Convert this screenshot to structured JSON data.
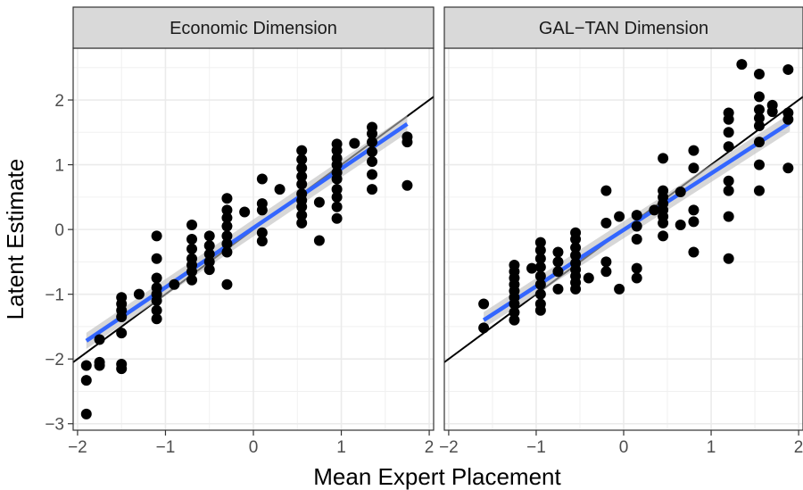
{
  "chart_data": [
    {
      "type": "scatter",
      "title": "Economic Dimension",
      "xlabel": "Mean Expert Placement",
      "ylabel": "Latent Estimate",
      "xlim": [
        -2.05,
        2.05
      ],
      "ylim": [
        -3.1,
        2.8
      ],
      "x_ticks": [
        -2,
        -1,
        0,
        1,
        2
      ],
      "y_ticks": [
        -3,
        -2,
        -1,
        0,
        1,
        2
      ],
      "grid": true,
      "identity_line": {
        "slope": 1,
        "intercept": 0
      },
      "fit_line": {
        "x": [
          -1.9,
          1.75
        ],
        "y": [
          -1.72,
          1.63
        ]
      },
      "points": [
        [
          -1.9,
          -2.85
        ],
        [
          -1.9,
          -2.33
        ],
        [
          -1.9,
          -2.1
        ],
        [
          -1.75,
          -2.1
        ],
        [
          -1.75,
          -2.05
        ],
        [
          -1.75,
          -1.7
        ],
        [
          -1.5,
          -2.15
        ],
        [
          -1.5,
          -2.08
        ],
        [
          -1.5,
          -1.6
        ],
        [
          -1.5,
          -1.35
        ],
        [
          -1.5,
          -1.25
        ],
        [
          -1.5,
          -1.15
        ],
        [
          -1.5,
          -1.05
        ],
        [
          -1.3,
          -1.0
        ],
        [
          -1.1,
          -0.1
        ],
        [
          -1.1,
          -0.45
        ],
        [
          -1.1,
          -0.75
        ],
        [
          -1.1,
          -0.9
        ],
        [
          -1.1,
          -1.0
        ],
        [
          -1.1,
          -1.1
        ],
        [
          -1.1,
          -1.25
        ],
        [
          -1.1,
          -1.38
        ],
        [
          -0.9,
          -0.85
        ],
        [
          -0.7,
          0.07
        ],
        [
          -0.7,
          -0.15
        ],
        [
          -0.7,
          -0.3
        ],
        [
          -0.7,
          -0.45
        ],
        [
          -0.7,
          -0.55
        ],
        [
          -0.7,
          -0.65
        ],
        [
          -0.7,
          -0.78
        ],
        [
          -0.5,
          -0.1
        ],
        [
          -0.5,
          -0.25
        ],
        [
          -0.5,
          -0.38
        ],
        [
          -0.5,
          -0.5
        ],
        [
          -0.5,
          -0.62
        ],
        [
          -0.3,
          0.48
        ],
        [
          -0.3,
          0.3
        ],
        [
          -0.3,
          0.18
        ],
        [
          -0.3,
          0.05
        ],
        [
          -0.3,
          -0.1
        ],
        [
          -0.3,
          -0.22
        ],
        [
          -0.3,
          -0.35
        ],
        [
          -0.3,
          -0.85
        ],
        [
          -0.1,
          0.27
        ],
        [
          0.1,
          0.78
        ],
        [
          0.1,
          0.4
        ],
        [
          0.1,
          0.3
        ],
        [
          0.1,
          -0.05
        ],
        [
          0.1,
          -0.18
        ],
        [
          0.3,
          0.62
        ],
        [
          0.55,
          1.22
        ],
        [
          0.55,
          1.08
        ],
        [
          0.55,
          0.95
        ],
        [
          0.55,
          0.82
        ],
        [
          0.55,
          0.7
        ],
        [
          0.55,
          0.55
        ],
        [
          0.55,
          0.45
        ],
        [
          0.55,
          0.35
        ],
        [
          0.55,
          0.22
        ],
        [
          0.55,
          0.1
        ],
        [
          0.75,
          0.42
        ],
        [
          0.75,
          -0.17
        ],
        [
          0.95,
          1.32
        ],
        [
          0.95,
          1.22
        ],
        [
          0.95,
          1.1
        ],
        [
          0.95,
          1.0
        ],
        [
          0.95,
          0.88
        ],
        [
          0.95,
          0.78
        ],
        [
          0.95,
          0.62
        ],
        [
          0.95,
          0.5
        ],
        [
          0.95,
          0.35
        ],
        [
          0.95,
          0.17
        ],
        [
          1.15,
          1.33
        ],
        [
          1.35,
          1.58
        ],
        [
          1.35,
          1.48
        ],
        [
          1.35,
          1.35
        ],
        [
          1.35,
          1.2
        ],
        [
          1.35,
          1.05
        ],
        [
          1.35,
          0.85
        ],
        [
          1.35,
          0.62
        ],
        [
          1.75,
          1.43
        ],
        [
          1.75,
          1.35
        ],
        [
          1.75,
          0.68
        ]
      ]
    },
    {
      "type": "scatter",
      "title": "GAL−TAN Dimension",
      "xlabel": "Mean Expert Placement",
      "ylabel": "Latent Estimate",
      "xlim": [
        -2.05,
        2.05
      ],
      "ylim": [
        -3.1,
        2.8
      ],
      "x_ticks": [
        -2,
        -1,
        0,
        1,
        2
      ],
      "y_ticks": [
        -3,
        -2,
        -1,
        0,
        1,
        2
      ],
      "grid": true,
      "identity_line": {
        "slope": 1,
        "intercept": 0
      },
      "fit_line": {
        "x": [
          -1.6,
          1.9
        ],
        "y": [
          -1.4,
          1.65
        ]
      },
      "points": [
        [
          -1.6,
          -1.15
        ],
        [
          -1.6,
          -1.52
        ],
        [
          -1.25,
          -0.55
        ],
        [
          -1.25,
          -0.65
        ],
        [
          -1.25,
          -0.75
        ],
        [
          -1.25,
          -0.85
        ],
        [
          -1.25,
          -0.95
        ],
        [
          -1.25,
          -1.05
        ],
        [
          -1.25,
          -1.15
        ],
        [
          -1.25,
          -1.28
        ],
        [
          -1.25,
          -1.4
        ],
        [
          -1.05,
          -0.6
        ],
        [
          -0.95,
          -0.2
        ],
        [
          -0.95,
          -0.32
        ],
        [
          -0.95,
          -0.45
        ],
        [
          -0.95,
          -0.58
        ],
        [
          -0.95,
          -0.72
        ],
        [
          -0.95,
          -0.85
        ],
        [
          -0.95,
          -1.0
        ],
        [
          -0.95,
          -1.15
        ],
        [
          -0.95,
          -1.25
        ],
        [
          -0.75,
          -0.35
        ],
        [
          -0.75,
          -0.5
        ],
        [
          -0.75,
          -0.65
        ],
        [
          -0.75,
          -0.92
        ],
        [
          -0.55,
          -0.05
        ],
        [
          -0.55,
          -0.15
        ],
        [
          -0.55,
          -0.28
        ],
        [
          -0.55,
          -0.4
        ],
        [
          -0.55,
          -0.52
        ],
        [
          -0.55,
          -0.62
        ],
        [
          -0.55,
          -0.72
        ],
        [
          -0.55,
          -0.82
        ],
        [
          -0.55,
          -0.92
        ],
        [
          -0.4,
          -0.75
        ],
        [
          -0.2,
          0.6
        ],
        [
          -0.2,
          0.1
        ],
        [
          -0.2,
          -0.5
        ],
        [
          -0.2,
          -0.65
        ],
        [
          -0.05,
          0.2
        ],
        [
          -0.05,
          -0.92
        ],
        [
          0.15,
          0.22
        ],
        [
          0.15,
          0.05
        ],
        [
          0.15,
          -0.15
        ],
        [
          0.15,
          -0.6
        ],
        [
          0.15,
          -0.75
        ],
        [
          0.35,
          0.3
        ],
        [
          0.45,
          1.1
        ],
        [
          0.45,
          0.6
        ],
        [
          0.45,
          0.5
        ],
        [
          0.45,
          0.4
        ],
        [
          0.45,
          0.3
        ],
        [
          0.45,
          0.2
        ],
        [
          0.45,
          0.1
        ],
        [
          0.45,
          -0.1
        ],
        [
          0.65,
          0.58
        ],
        [
          0.65,
          0.07
        ],
        [
          0.8,
          1.22
        ],
        [
          0.8,
          0.95
        ],
        [
          0.8,
          0.3
        ],
        [
          0.8,
          0.12
        ],
        [
          0.8,
          -0.35
        ],
        [
          1.2,
          1.8
        ],
        [
          1.2,
          1.7
        ],
        [
          1.2,
          1.5
        ],
        [
          1.2,
          1.28
        ],
        [
          1.2,
          0.75
        ],
        [
          1.2,
          0.6
        ],
        [
          1.2,
          0.2
        ],
        [
          1.2,
          -0.45
        ],
        [
          1.35,
          2.55
        ],
        [
          1.55,
          2.4
        ],
        [
          1.55,
          2.05
        ],
        [
          1.55,
          1.85
        ],
        [
          1.55,
          1.72
        ],
        [
          1.55,
          1.6
        ],
        [
          1.55,
          1.35
        ],
        [
          1.55,
          1.0
        ],
        [
          1.55,
          0.6
        ],
        [
          1.7,
          1.92
        ],
        [
          1.7,
          1.82
        ],
        [
          1.88,
          2.47
        ],
        [
          1.88,
          1.8
        ],
        [
          1.88,
          1.7
        ],
        [
          1.88,
          0.95
        ]
      ]
    }
  ]
}
